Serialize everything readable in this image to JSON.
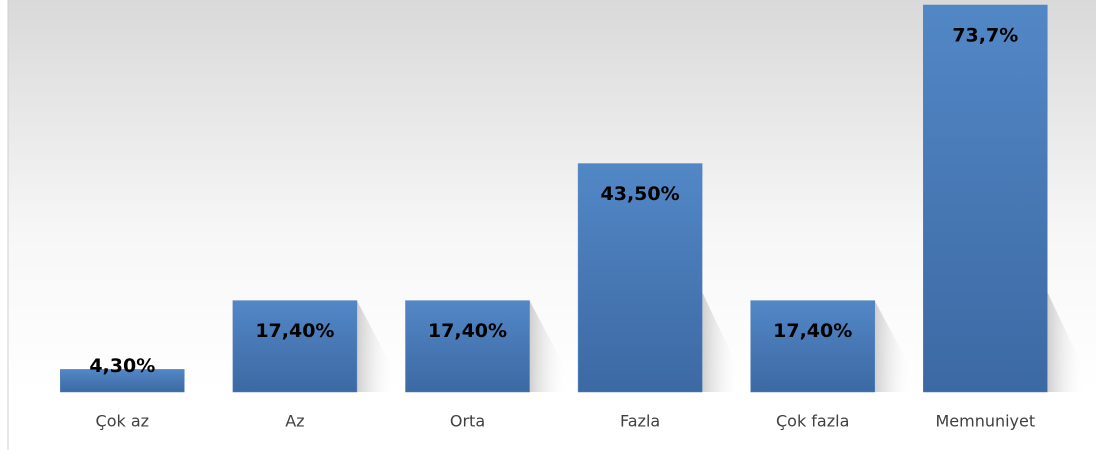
{
  "chart_data": {
    "type": "bar",
    "categories": [
      "Çok az",
      "Az",
      "Orta",
      "Fazla",
      "Çok fazla",
      "Memnuniyet"
    ],
    "values": [
      4.3,
      17.4,
      17.4,
      43.5,
      17.4,
      73.7
    ],
    "value_labels": [
      "4,30%",
      "17,40%",
      "17,40%",
      "43,50%",
      "17,40%",
      "73,7%"
    ],
    "color": "#4f81bd"
  }
}
